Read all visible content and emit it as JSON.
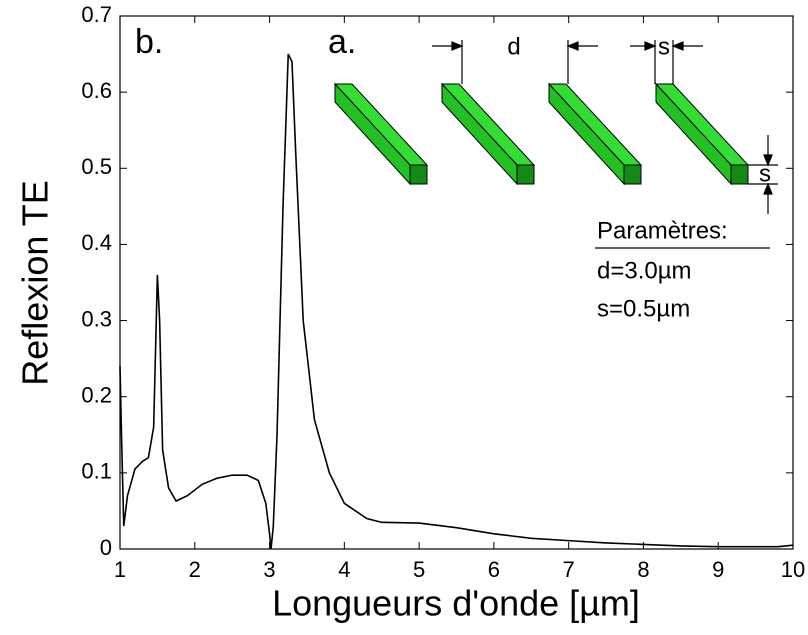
{
  "chart_data": {
    "type": "line",
    "xlabel": "Longueurs d'onde [µm]",
    "ylabel": "Reflexion TE",
    "annotations": {
      "panel_b": "b.",
      "panel_a": "a.",
      "d_label": "d",
      "s_label_top": "s",
      "s_label_side": "s",
      "params_title": "Paramètres:",
      "param_d": "d=3.0µm",
      "param_s": "s=0.5µm"
    },
    "x": [
      1.0,
      1.02,
      1.05,
      1.1,
      1.2,
      1.3,
      1.38,
      1.45,
      1.5,
      1.53,
      1.57,
      1.65,
      1.75,
      1.9,
      2.1,
      2.3,
      2.5,
      2.7,
      2.85,
      2.95,
      3.0,
      3.02,
      3.05,
      3.1,
      3.18,
      3.25,
      3.3,
      3.35,
      3.45,
      3.6,
      3.8,
      4.0,
      4.3,
      4.5,
      5.0,
      5.5,
      6.0,
      6.5,
      7.0,
      7.5,
      8.0,
      8.5,
      9.0,
      9.5,
      9.8,
      10.0
    ],
    "series": [
      {
        "name": "Reflexion TE",
        "color": "#000000",
        "values": [
          0.24,
          0.15,
          0.03,
          0.07,
          0.105,
          0.115,
          0.12,
          0.16,
          0.36,
          0.3,
          0.13,
          0.08,
          0.063,
          0.07,
          0.085,
          0.093,
          0.097,
          0.097,
          0.09,
          0.06,
          0.02,
          0.0,
          0.03,
          0.15,
          0.45,
          0.65,
          0.64,
          0.52,
          0.3,
          0.17,
          0.1,
          0.06,
          0.04,
          0.035,
          0.034,
          0.028,
          0.02,
          0.014,
          0.011,
          0.008,
          0.006,
          0.004,
          0.003,
          0.003,
          0.003,
          0.005
        ]
      }
    ],
    "xlim": [
      1,
      10
    ],
    "ylim": [
      0,
      0.7
    ],
    "xticks": [
      1,
      2,
      3,
      4,
      5,
      6,
      7,
      8,
      9,
      10
    ],
    "yticks": [
      0,
      0.1,
      0.2,
      0.3,
      0.4,
      0.5,
      0.6,
      0.7
    ]
  }
}
